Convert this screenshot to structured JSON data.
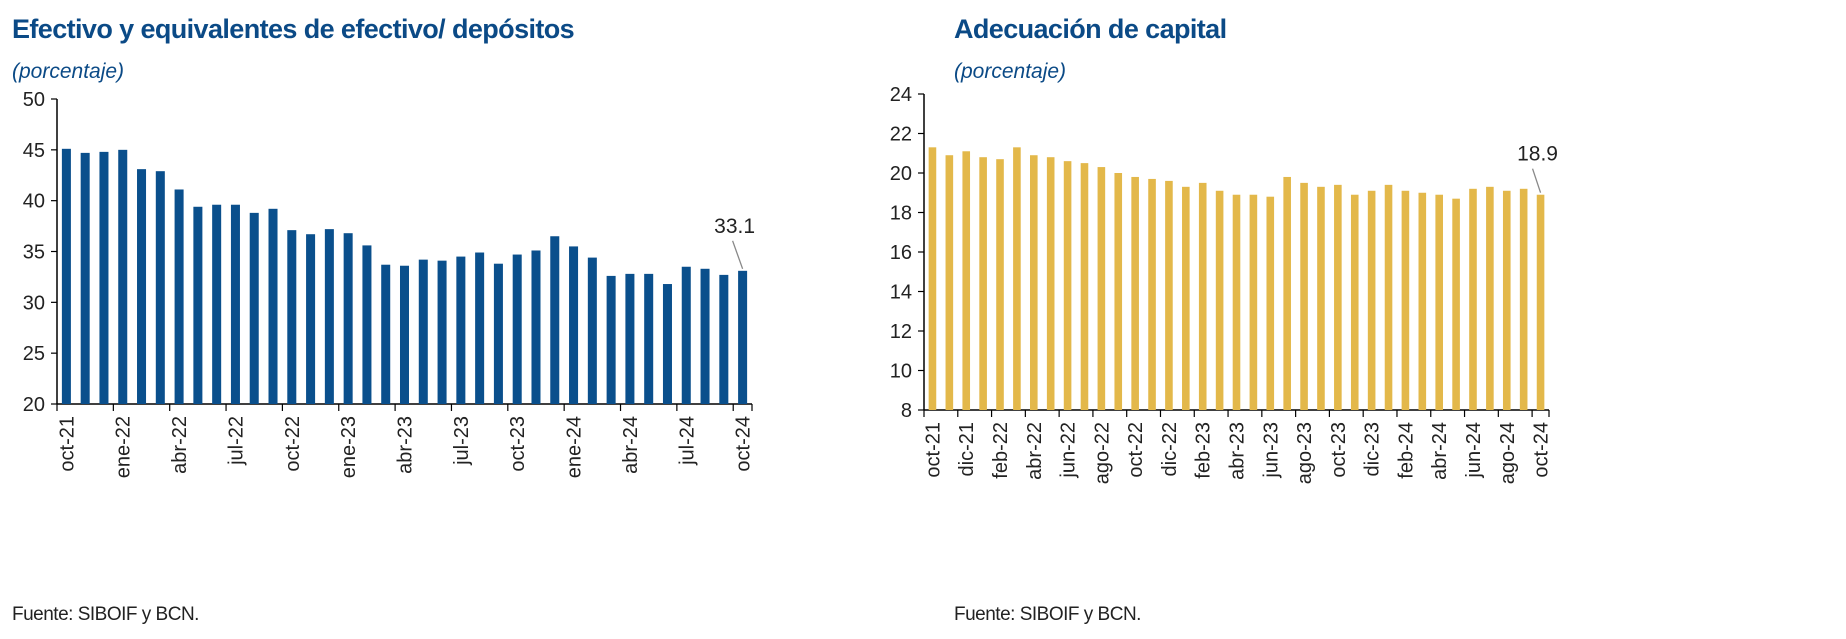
{
  "charts": [
    {
      "title": "Efectivo y equivalentes de efectivo/ depósitos",
      "subtitle": "(porcentaje)",
      "source": "Fuente: SIBOIF y BCN.",
      "color": "#0a4f8c"
    },
    {
      "title": "Adecuación de capital",
      "subtitle": "(porcentaje)",
      "source": "Fuente: SIBOIF y BCN.",
      "color": "#e3b84a"
    }
  ],
  "chart_data": [
    {
      "type": "bar",
      "title": "Efectivo y equivalentes de efectivo/ depósitos",
      "ylabel": "(porcentaje)",
      "ylim": [
        20,
        50
      ],
      "yticks": [
        20,
        25,
        30,
        35,
        40,
        45,
        50
      ],
      "categories": [
        "oct-21",
        "nov-21",
        "dic-21",
        "ene-22",
        "feb-22",
        "mar-22",
        "abr-22",
        "may-22",
        "jun-22",
        "jul-22",
        "ago-22",
        "sep-22",
        "oct-22",
        "nov-22",
        "dic-22",
        "ene-23",
        "feb-23",
        "mar-23",
        "abr-23",
        "may-23",
        "jun-23",
        "jul-23",
        "ago-23",
        "sep-23",
        "oct-23",
        "nov-23",
        "dic-23",
        "ene-24",
        "feb-24",
        "mar-24",
        "abr-24",
        "may-24",
        "jun-24",
        "jul-24",
        "ago-24",
        "sep-24",
        "oct-24"
      ],
      "tick_labels": [
        "oct-21",
        "ene-22",
        "abr-22",
        "jul-22",
        "oct-22",
        "ene-23",
        "abr-23",
        "jul-23",
        "oct-23",
        "ene-24",
        "abr-24",
        "jul-24",
        "oct-24"
      ],
      "values": [
        45.1,
        44.7,
        44.8,
        45.0,
        43.1,
        42.9,
        41.1,
        39.4,
        39.6,
        39.6,
        38.8,
        39.2,
        37.1,
        36.7,
        37.2,
        36.8,
        35.6,
        33.7,
        33.6,
        34.2,
        34.1,
        34.5,
        34.9,
        33.8,
        34.7,
        35.1,
        36.5,
        35.5,
        34.4,
        32.6,
        32.8,
        32.8,
        31.8,
        33.5,
        33.3,
        32.7,
        33.1
      ],
      "annotation": {
        "text": "33.1",
        "category": "oct-24"
      },
      "grid": false,
      "legend": "none"
    },
    {
      "type": "bar",
      "title": "Adecuación de capital",
      "ylabel": "(porcentaje)",
      "ylim": [
        8,
        24
      ],
      "yticks": [
        8,
        10,
        12,
        14,
        16,
        18,
        20,
        22,
        24
      ],
      "categories": [
        "oct-21",
        "nov-21",
        "dic-21",
        "ene-22",
        "feb-22",
        "mar-22",
        "abr-22",
        "may-22",
        "jun-22",
        "jul-22",
        "ago-22",
        "sep-22",
        "oct-22",
        "nov-22",
        "dic-22",
        "ene-23",
        "feb-23",
        "mar-23",
        "abr-23",
        "may-23",
        "jun-23",
        "jul-23",
        "ago-23",
        "sep-23",
        "oct-23",
        "nov-23",
        "dic-23",
        "ene-24",
        "feb-24",
        "mar-24",
        "abr-24",
        "may-24",
        "jun-24",
        "jul-24",
        "ago-24",
        "sep-24",
        "oct-24"
      ],
      "tick_labels": [
        "oct-21",
        "dic-21",
        "feb-22",
        "abr-22",
        "jun-22",
        "ago-22",
        "oct-22",
        "dic-22",
        "feb-23",
        "abr-23",
        "jun-23",
        "ago-23",
        "oct-23",
        "dic-23",
        "feb-24",
        "abr-24",
        "jun-24",
        "ago-24",
        "oct-24"
      ],
      "values": [
        21.3,
        20.9,
        21.1,
        20.8,
        20.7,
        21.3,
        20.9,
        20.8,
        20.6,
        20.5,
        20.3,
        20.0,
        19.8,
        19.7,
        19.6,
        19.3,
        19.5,
        19.1,
        18.9,
        18.9,
        18.8,
        19.8,
        19.5,
        19.3,
        19.4,
        18.9,
        19.1,
        19.4,
        19.1,
        19.0,
        18.9,
        18.7,
        19.2,
        19.3,
        19.1,
        19.2,
        18.9
      ],
      "annotation": {
        "text": "18.9",
        "category": "oct-24"
      },
      "grid": false,
      "legend": "none"
    }
  ]
}
